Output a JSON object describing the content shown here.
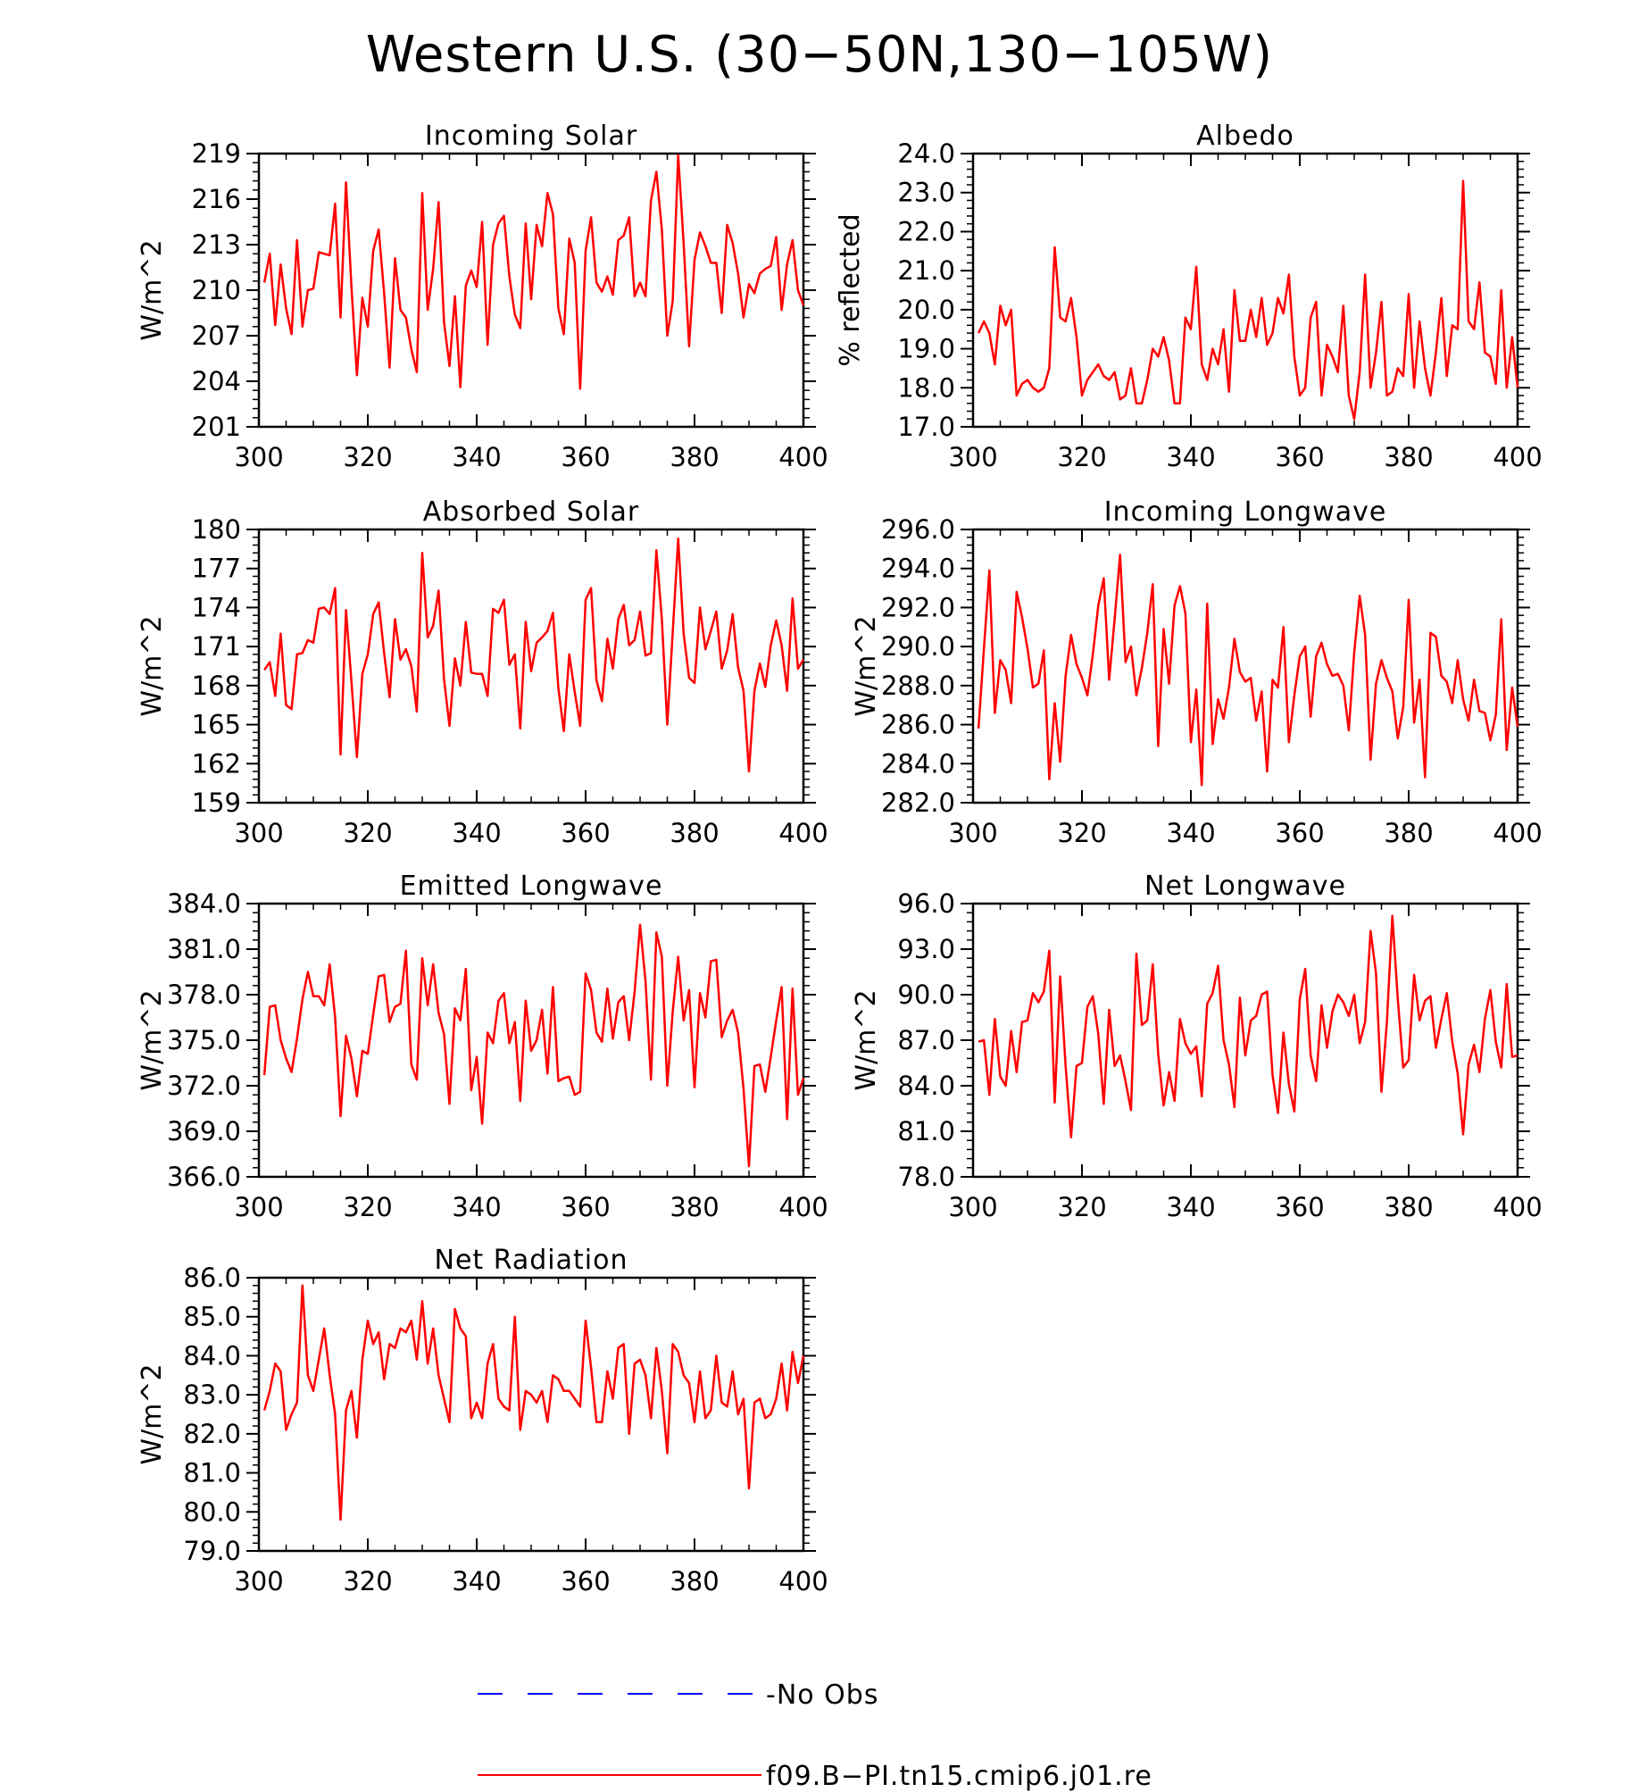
{
  "figure": {
    "title": "Western U.S. (30−50N,130−105W)",
    "line_color": "#ff0000",
    "obs_color": "#0000ff"
  },
  "legend": {
    "position": "bottom",
    "entries": [
      {
        "label": "No Obs",
        "style": "dashed",
        "color": "#0000ff"
      },
      {
        "label": "f09.B−PI.tn15.cmip6.j01.re",
        "style": "solid",
        "color": "#ff0000"
      }
    ]
  },
  "chart_data": [
    {
      "type": "line",
      "title": "Incoming Solar",
      "ylabel": "W/m^2",
      "xlim": [
        300,
        400
      ],
      "ylim": [
        201,
        219
      ],
      "xticks": [
        "300",
        "320",
        "340",
        "360",
        "380",
        "400"
      ],
      "yticks": [
        "201",
        "204",
        "207",
        "210",
        "213",
        "216",
        "219"
      ],
      "x_start": 301,
      "series": [
        {
          "values": [
            210.5,
            212.4,
            207.7,
            211.7,
            208.8,
            207.1,
            213.3,
            207.6,
            210.0,
            210.1,
            212.5,
            212.4,
            212.3,
            215.7,
            208.2,
            217.1,
            210.2,
            204.4,
            209.5,
            207.6,
            212.6,
            214.0,
            209.8,
            204.9,
            212.1,
            208.7,
            208.2,
            206.1,
            204.6,
            216.4,
            208.7,
            211.4,
            215.8,
            207.9,
            205.0,
            209.6,
            203.6,
            210.3,
            211.3,
            210.2,
            214.5,
            206.4,
            213.0,
            214.4,
            214.9,
            210.9,
            208.4,
            207.5,
            214.4,
            209.4,
            214.3,
            212.9,
            216.4,
            215.0,
            208.8,
            207.1,
            213.4,
            211.8,
            203.5,
            212.6,
            214.8,
            210.5,
            209.9,
            210.9,
            209.7,
            213.3,
            213.6,
            214.8,
            209.6,
            210.5,
            209.6,
            215.9,
            217.8,
            214.0,
            207.0,
            209.3,
            218.9,
            213.1,
            206.3,
            212.0,
            213.8,
            212.9,
            211.8,
            211.8,
            208.5,
            214.3,
            213.1,
            211.1,
            208.2,
            210.4,
            209.8,
            211.1,
            211.4,
            211.6,
            213.5,
            208.7,
            211.7,
            213.3,
            210.0,
            209.0
          ]
        }
      ]
    },
    {
      "type": "line",
      "title": "Albedo",
      "ylabel": "% reflected",
      "xlim": [
        300,
        400
      ],
      "ylim": [
        17.0,
        24.0
      ],
      "xticks": [
        "300",
        "320",
        "340",
        "360",
        "380",
        "400"
      ],
      "yticks": [
        "17.0",
        "18.0",
        "19.0",
        "20.0",
        "21.0",
        "22.0",
        "23.0",
        "24.0"
      ],
      "x_start": 301,
      "series": [
        {
          "values": [
            19.4,
            19.7,
            19.4,
            18.6,
            20.1,
            19.6,
            20.0,
            17.8,
            18.1,
            18.2,
            18.0,
            17.9,
            18.0,
            18.5,
            21.6,
            19.8,
            19.7,
            20.3,
            19.3,
            17.8,
            18.2,
            18.4,
            18.6,
            18.3,
            18.2,
            18.4,
            17.7,
            17.8,
            18.5,
            17.6,
            17.6,
            18.2,
            19.0,
            18.8,
            19.3,
            18.7,
            17.6,
            17.6,
            19.8,
            19.5,
            21.1,
            18.6,
            18.2,
            19.0,
            18.6,
            19.5,
            17.9,
            20.5,
            19.2,
            19.2,
            20.0,
            19.3,
            20.3,
            19.1,
            19.4,
            20.3,
            19.9,
            20.9,
            18.8,
            17.8,
            18.0,
            19.8,
            20.2,
            17.8,
            19.1,
            18.8,
            18.4,
            20.1,
            17.8,
            17.2,
            18.4,
            20.9,
            18.0,
            18.9,
            20.2,
            17.8,
            17.9,
            18.5,
            18.3,
            20.4,
            18.0,
            19.7,
            18.5,
            17.8,
            18.9,
            20.3,
            18.3,
            19.6,
            19.5,
            23.3,
            19.7,
            19.5,
            20.7,
            18.9,
            18.8,
            18.1,
            20.5,
            18.0,
            19.3,
            18.0
          ]
        }
      ]
    },
    {
      "type": "line",
      "title": "Absorbed Solar",
      "ylabel": "W/m^2",
      "xlim": [
        300,
        400
      ],
      "ylim": [
        159,
        180
      ],
      "xticks": [
        "300",
        "320",
        "340",
        "360",
        "380",
        "400"
      ],
      "yticks": [
        "159",
        "162",
        "165",
        "168",
        "171",
        "174",
        "177",
        "180"
      ],
      "x_start": 301,
      "series": [
        {
          "values": [
            169.2,
            169.8,
            167.2,
            172.0,
            166.5,
            166.2,
            170.4,
            170.5,
            171.5,
            171.3,
            173.9,
            174.0,
            173.5,
            175.5,
            162.7,
            173.8,
            168.3,
            162.5,
            168.9,
            170.4,
            173.5,
            174.4,
            170.5,
            167.1,
            173.1,
            170.0,
            170.8,
            169.5,
            166.0,
            178.2,
            171.7,
            172.6,
            175.3,
            168.5,
            164.9,
            170.1,
            168.0,
            172.9,
            169.0,
            168.9,
            168.9,
            167.2,
            173.9,
            173.6,
            174.6,
            169.6,
            170.4,
            164.7,
            172.9,
            169.1,
            171.3,
            171.7,
            172.2,
            173.6,
            167.8,
            164.5,
            170.4,
            167.5,
            164.9,
            174.6,
            175.5,
            168.4,
            166.8,
            171.6,
            169.3,
            173.1,
            174.2,
            171.1,
            171.5,
            173.7,
            170.3,
            170.5,
            178.4,
            173.1,
            165.0,
            172.1,
            179.3,
            172.0,
            168.6,
            168.2,
            174.0,
            170.8,
            172.2,
            173.7,
            169.3,
            170.7,
            173.5,
            169.4,
            167.6,
            161.4,
            167.6,
            169.7,
            167.9,
            171.1,
            173.0,
            171.1,
            167.6,
            174.7,
            169.3,
            170.0
          ]
        }
      ]
    },
    {
      "type": "line",
      "title": "Incoming Longwave",
      "ylabel": "W/m^2",
      "xlim": [
        300,
        400
      ],
      "ylim": [
        282.0,
        296.0
      ],
      "xticks": [
        "300",
        "320",
        "340",
        "360",
        "380",
        "400"
      ],
      "yticks": [
        "282.0",
        "284.0",
        "286.0",
        "288.0",
        "290.0",
        "292.0",
        "294.0",
        "296.0"
      ],
      "x_start": 301,
      "series": [
        {
          "values": [
            285.8,
            289.9,
            293.9,
            286.6,
            289.3,
            288.8,
            287.1,
            292.8,
            291.5,
            289.9,
            287.9,
            288.1,
            289.8,
            283.2,
            287.1,
            284.1,
            288.5,
            290.6,
            289.1,
            288.4,
            287.5,
            289.6,
            292.1,
            293.5,
            288.3,
            291.4,
            294.7,
            289.2,
            290.0,
            287.5,
            288.9,
            290.7,
            293.2,
            284.9,
            290.9,
            288.1,
            292.1,
            293.1,
            291.7,
            285.1,
            287.8,
            282.9,
            292.2,
            285.0,
            287.3,
            286.3,
            287.9,
            290.4,
            288.7,
            288.2,
            288.4,
            286.2,
            287.7,
            283.6,
            288.3,
            287.9,
            291.0,
            285.1,
            287.5,
            289.5,
            290.0,
            286.4,
            289.5,
            290.2,
            289.1,
            288.5,
            288.6,
            288.0,
            285.7,
            289.7,
            292.6,
            290.6,
            284.2,
            288.1,
            289.3,
            288.4,
            287.7,
            285.3,
            286.9,
            292.4,
            286.1,
            288.3,
            283.3,
            290.7,
            290.5,
            288.5,
            288.2,
            287.1,
            289.3,
            287.3,
            286.2,
            288.3,
            286.7,
            286.6,
            285.2,
            286.5,
            291.4,
            284.7,
            287.9,
            285.9
          ]
        }
      ]
    },
    {
      "type": "line",
      "title": "Emitted Longwave",
      "ylabel": "W/m^2",
      "xlim": [
        300,
        400
      ],
      "ylim": [
        366.0,
        384.0
      ],
      "xticks": [
        "300",
        "320",
        "340",
        "360",
        "380",
        "400"
      ],
      "yticks": [
        "366.0",
        "369.0",
        "372.0",
        "375.0",
        "378.0",
        "381.0",
        "384.0"
      ],
      "x_start": 301,
      "series": [
        {
          "values": [
            372.7,
            377.2,
            377.3,
            375.0,
            373.8,
            372.9,
            375.1,
            377.7,
            379.5,
            377.9,
            377.9,
            377.3,
            380.0,
            376.5,
            370.0,
            375.3,
            373.8,
            371.3,
            374.3,
            374.1,
            376.7,
            379.2,
            379.3,
            376.2,
            377.2,
            377.4,
            380.9,
            373.4,
            372.4,
            380.4,
            377.3,
            380.0,
            376.8,
            375.4,
            370.8,
            377.1,
            376.3,
            379.7,
            371.7,
            373.9,
            369.5,
            375.5,
            374.8,
            377.6,
            378.1,
            374.8,
            376.2,
            371.0,
            377.6,
            374.3,
            375.0,
            377.0,
            372.8,
            378.5,
            372.3,
            372.5,
            372.6,
            371.4,
            371.6,
            379.4,
            378.3,
            375.5,
            374.9,
            378.4,
            375.1,
            377.5,
            377.9,
            375.0,
            378.2,
            382.6,
            378.9,
            372.4,
            382.1,
            380.5,
            372.0,
            376.9,
            380.5,
            376.3,
            378.3,
            371.9,
            378.1,
            376.5,
            380.2,
            380.3,
            375.2,
            376.3,
            377.0,
            375.5,
            371.8,
            366.7,
            373.3,
            373.4,
            371.6,
            373.9,
            376.3,
            378.5,
            369.8,
            378.4,
            371.4,
            372.5
          ]
        }
      ]
    },
    {
      "type": "line",
      "title": "Net Longwave",
      "ylabel": "W/m^2",
      "xlim": [
        300,
        400
      ],
      "ylim": [
        78.0,
        96.0
      ],
      "xticks": [
        "300",
        "320",
        "340",
        "360",
        "380",
        "400"
      ],
      "yticks": [
        "78.0",
        "81.0",
        "84.0",
        "87.0",
        "90.0",
        "93.0",
        "96.0"
      ],
      "x_start": 301,
      "series": [
        {
          "values": [
            86.9,
            87.0,
            83.4,
            88.4,
            84.6,
            84.0,
            87.6,
            84.9,
            88.2,
            88.3,
            90.1,
            89.5,
            90.2,
            92.9,
            82.9,
            91.2,
            85.3,
            80.6,
            85.3,
            85.5,
            89.2,
            89.9,
            87.4,
            82.8,
            89.0,
            85.3,
            86.0,
            84.3,
            82.4,
            92.7,
            88.0,
            88.3,
            92.0,
            86.1,
            82.7,
            84.9,
            83.0,
            88.4,
            86.8,
            86.1,
            86.6,
            83.3,
            89.4,
            90.1,
            91.9,
            87.0,
            85.4,
            82.6,
            89.8,
            86.0,
            88.3,
            88.6,
            90.0,
            90.2,
            84.7,
            82.2,
            87.5,
            84.1,
            82.3,
            89.7,
            91.7,
            86.0,
            84.3,
            89.3,
            86.5,
            88.9,
            90.0,
            89.5,
            88.6,
            90.0,
            86.8,
            88.2,
            94.2,
            91.4,
            83.6,
            88.2,
            95.2,
            89.7,
            85.2,
            85.7,
            91.3,
            88.3,
            89.6,
            89.9,
            86.5,
            88.4,
            90.1,
            86.9,
            84.8,
            80.8,
            85.4,
            86.7,
            84.9,
            88.4,
            90.3,
            86.9,
            85.2,
            90.7,
            85.9,
            86.0
          ]
        }
      ]
    },
    {
      "type": "line",
      "title": "Net Radiation",
      "ylabel": "W/m^2",
      "xlim": [
        300,
        400
      ],
      "ylim": [
        79.0,
        86.0
      ],
      "xticks": [
        "300",
        "320",
        "340",
        "360",
        "380",
        "400"
      ],
      "yticks": [
        "79.0",
        "80.0",
        "81.0",
        "82.0",
        "83.0",
        "84.0",
        "85.0",
        "86.0"
      ],
      "x_start": 301,
      "series": [
        {
          "values": [
            82.6,
            83.1,
            83.8,
            83.6,
            82.1,
            82.5,
            82.8,
            85.8,
            83.5,
            83.1,
            83.9,
            84.7,
            83.5,
            82.5,
            79.8,
            82.6,
            83.1,
            81.9,
            83.9,
            84.9,
            84.3,
            84.6,
            83.4,
            84.3,
            84.2,
            84.7,
            84.6,
            84.9,
            83.9,
            85.4,
            83.8,
            84.7,
            83.5,
            82.9,
            82.3,
            85.2,
            84.7,
            84.5,
            82.4,
            82.8,
            82.4,
            83.8,
            84.3,
            82.9,
            82.7,
            82.6,
            85.0,
            82.1,
            83.1,
            83.0,
            82.8,
            83.1,
            82.3,
            83.5,
            83.4,
            83.1,
            83.1,
            82.9,
            82.7,
            84.9,
            83.7,
            82.3,
            82.3,
            83.6,
            82.9,
            84.2,
            84.3,
            82.0,
            83.8,
            83.9,
            83.5,
            82.4,
            84.2,
            83.1,
            81.5,
            84.3,
            84.1,
            83.5,
            83.3,
            82.3,
            83.6,
            82.4,
            82.6,
            84.0,
            82.8,
            82.7,
            83.6,
            82.5,
            82.9,
            80.6,
            82.8,
            82.9,
            82.4,
            82.5,
            82.9,
            83.8,
            82.6,
            84.1,
            83.3,
            84.0
          ]
        }
      ]
    }
  ]
}
